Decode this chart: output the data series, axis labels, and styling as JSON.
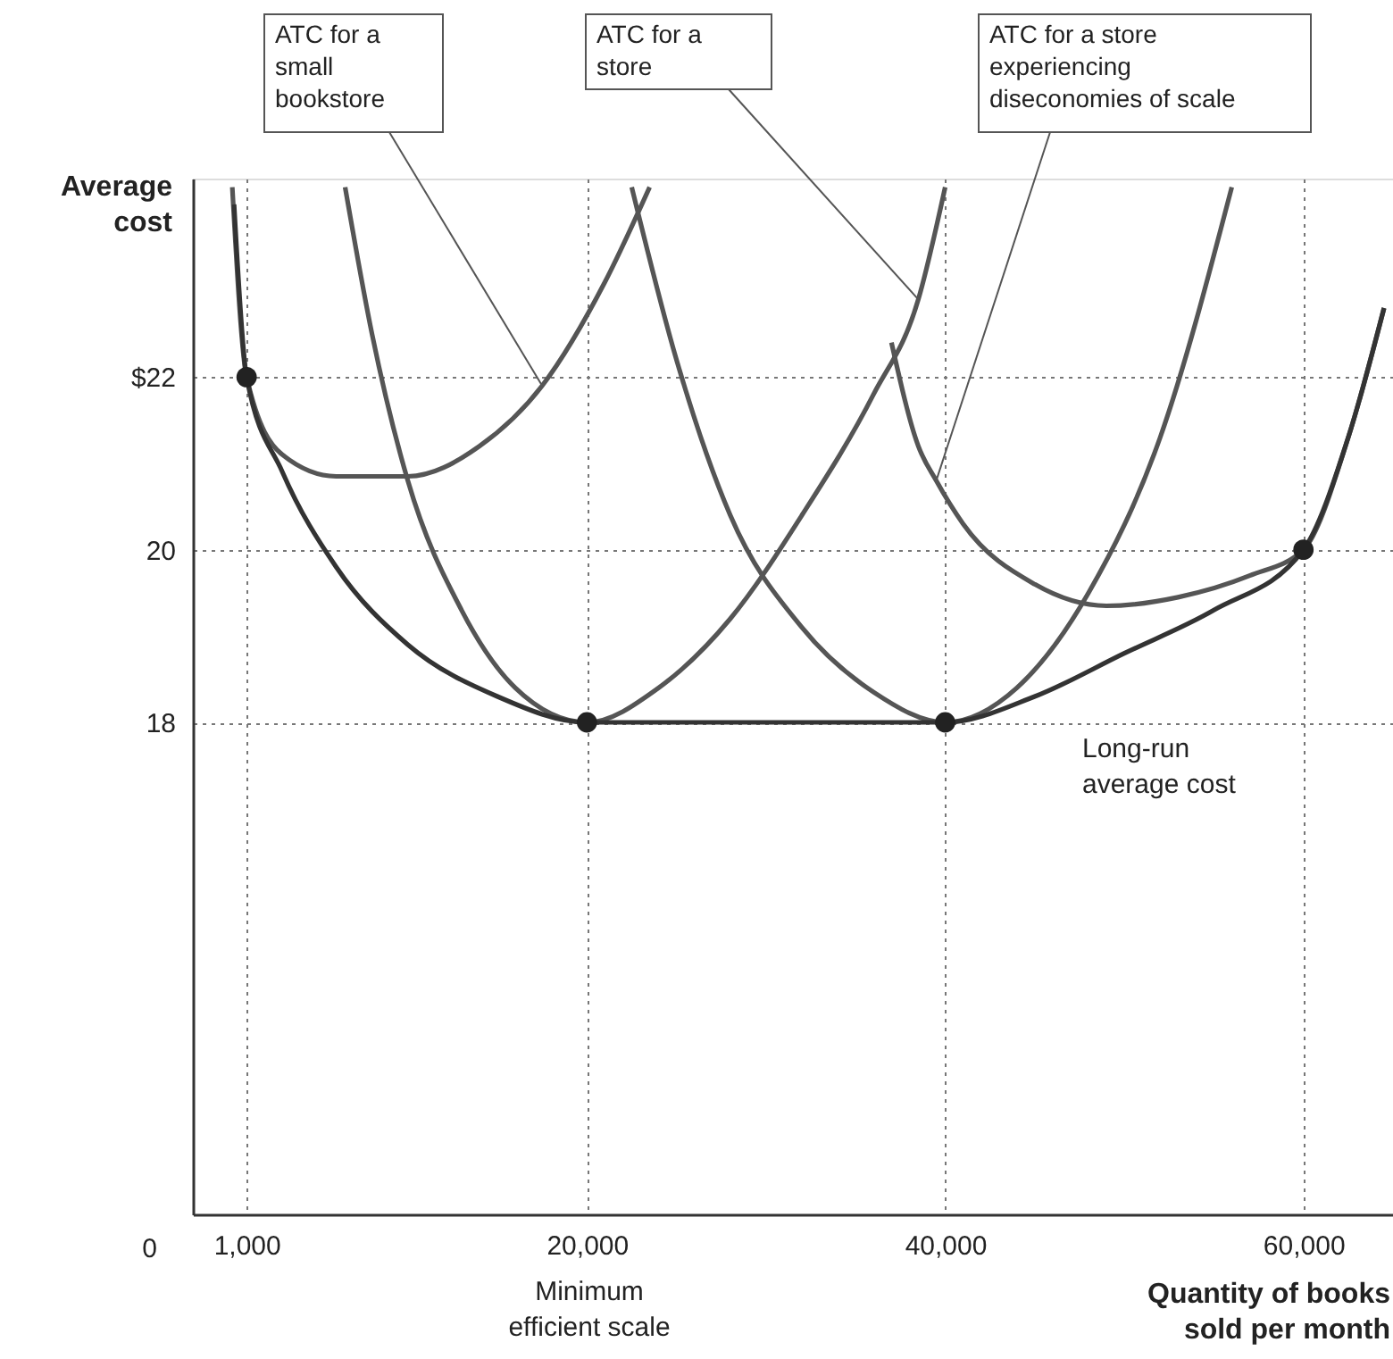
{
  "chart_data": {
    "type": "line",
    "xlabel": "Quantity of books sold per month",
    "ylabel": "Average cost",
    "xlim": [
      -2000,
      65000
    ],
    "xticks": [
      {
        "value": 1000,
        "label": "1,000"
      },
      {
        "value": 20000,
        "label": "20,000"
      },
      {
        "value": 40000,
        "label": "40,000"
      },
      {
        "value": 60000,
        "label": "60,000"
      }
    ],
    "ylim": [
      12.3,
      24.3
    ],
    "yticks": [
      18,
      20,
      {
        "value": 22,
        "label": "$22"
      }
    ],
    "grid": true,
    "series": [
      {
        "marker": "none",
        "color": "#555555",
        "x": [
          200,
          1000,
          3000,
          6000,
          10000,
          14000,
          17500,
          21000,
          23500
        ],
        "values": [
          24.2,
          22,
          21.1,
          20.85,
          20.85,
          21.2,
          21.9,
          23.1,
          24.2
        ]
      },
      {
        "marker": "none",
        "color": "#555555",
        "x": [
          6500,
          8000,
          10000,
          13000,
          16000,
          20000,
          24000,
          28000,
          32000,
          36000,
          38500,
          40000
        ],
        "values": [
          24.2,
          22.5,
          20.8,
          19.3,
          18.4,
          18,
          18.4,
          19.2,
          20.4,
          21.8,
          22.9,
          24.2
        ]
      },
      {
        "marker": "none",
        "color": "#555555",
        "x": [
          22500,
          25000,
          28000,
          32000,
          36000,
          40000,
          44000,
          48000,
          52000,
          56000
        ],
        "values": [
          24.2,
          22.2,
          20.4,
          19.1,
          18.35,
          18,
          18.4,
          19.5,
          21.3,
          24.2
        ]
      },
      {
        "marker": "none",
        "color": "#555555",
        "x": [
          37000,
          38500,
          39500,
          41000,
          45000,
          49000,
          53000,
          57000,
          60000,
          62500,
          64500
        ],
        "values": [
          22.4,
          21.2,
          20.8,
          20.3,
          19.6,
          19.35,
          19.45,
          19.7,
          20,
          21.3,
          22.8
        ]
      },
      {
        "marker": "none",
        "color": "#333333",
        "x": [
          300,
          1000,
          3000,
          6000,
          10000,
          15000,
          20000,
          40000,
          45000,
          50000,
          55000,
          60000,
          62500,
          64500
        ],
        "values": [
          24.0,
          22,
          20.9,
          19.8,
          18.9,
          18.3,
          18,
          18,
          18.3,
          18.8,
          19.3,
          20,
          21.3,
          22.8
        ]
      },
      {
        "type": "scatter",
        "marker": "circle",
        "color": "#222222",
        "x": [
          1000,
          20000,
          40000,
          60000
        ],
        "values": [
          22,
          18,
          18,
          20
        ]
      }
    ],
    "annotations": [
      {
        "text": "ATC for a\nsmall\nbookstore",
        "x": 17500,
        "y": 21.9
      },
      {
        "text": "ATC for a\nstore",
        "x": 38500,
        "y": 22.9
      },
      {
        "text": "ATC for a store\nexperiencing\ndiseconomies of scale",
        "x": 39500,
        "y": 20.8
      },
      "Long-run\naverage cost",
      "Minimum\nefficient scale",
      "0"
    ]
  }
}
